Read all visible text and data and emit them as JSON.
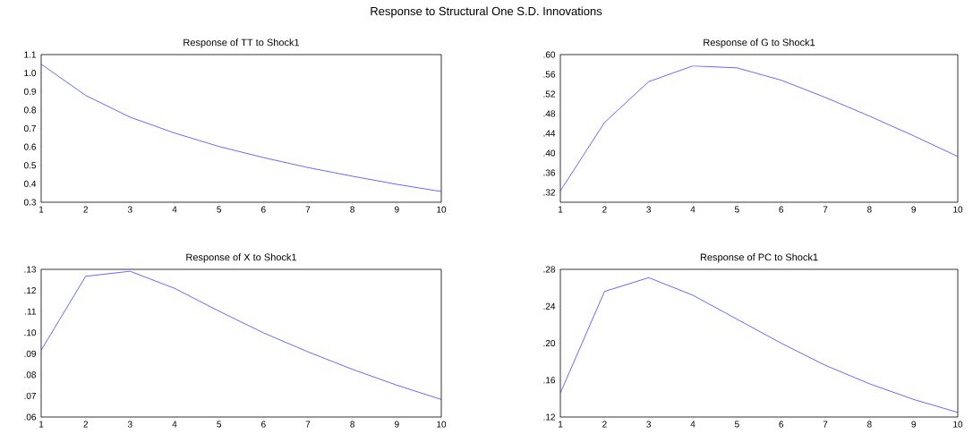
{
  "chart_data": [
    {
      "type": "line",
      "title": "Response of TT to Shock1",
      "annotations": [
        "Response to Structural One S.D. Innovations"
      ],
      "x": [
        1,
        2,
        3,
        4,
        5,
        6,
        7,
        8,
        9,
        10
      ],
      "xlim": [
        1,
        10
      ],
      "xticks": [
        1,
        2,
        3,
        4,
        5,
        6,
        7,
        8,
        9,
        10
      ],
      "ylim": [
        0.3,
        1.1
      ],
      "yticks": [
        {
          "value": 0.3,
          "label": "0.3"
        },
        {
          "value": 0.4,
          "label": "0.4"
        },
        {
          "value": 0.5,
          "label": "0.5"
        },
        {
          "value": 0.6,
          "label": "0.6"
        },
        {
          "value": 0.7,
          "label": "0.7"
        },
        {
          "value": 0.8,
          "label": "0.8"
        },
        {
          "value": 0.9,
          "label": "0.9"
        },
        {
          "value": 1.0,
          "label": "1.0"
        },
        {
          "value": 1.1,
          "label": "1.1"
        }
      ],
      "color": "#0000ff",
      "values": [
        1.048,
        0.879,
        0.761,
        0.675,
        0.602,
        0.542,
        0.488,
        0.441,
        0.397,
        0.358
      ]
    },
    {
      "type": "line",
      "title": "Response of G to Shock1",
      "x": [
        1,
        2,
        3,
        4,
        5,
        6,
        7,
        8,
        9,
        10
      ],
      "xlim": [
        1,
        10
      ],
      "xticks": [
        1,
        2,
        3,
        4,
        5,
        6,
        7,
        8,
        9,
        10
      ],
      "ylim": [
        0.3,
        0.6
      ],
      "yticks": [
        {
          "value": 0.32,
          "label": ".32"
        },
        {
          "value": 0.36,
          "label": ".36"
        },
        {
          "value": 0.4,
          "label": ".40"
        },
        {
          "value": 0.44,
          "label": ".44"
        },
        {
          "value": 0.48,
          "label": ".48"
        },
        {
          "value": 0.52,
          "label": ".52"
        },
        {
          "value": 0.56,
          "label": ".56"
        },
        {
          "value": 0.6,
          "label": ".60"
        }
      ],
      "color": "#0000ff",
      "values": [
        0.323,
        0.462,
        0.545,
        0.577,
        0.573,
        0.548,
        0.513,
        0.475,
        0.435,
        0.393
      ]
    },
    {
      "type": "line",
      "title": "Response of X to Shock1",
      "x": [
        1,
        2,
        3,
        4,
        5,
        6,
        7,
        8,
        9,
        10
      ],
      "xlim": [
        1,
        10
      ],
      "xticks": [
        1,
        2,
        3,
        4,
        5,
        6,
        7,
        8,
        9,
        10
      ],
      "ylim": [
        0.06,
        0.13
      ],
      "yticks": [
        {
          "value": 0.06,
          "label": ".06"
        },
        {
          "value": 0.07,
          "label": ".07"
        },
        {
          "value": 0.08,
          "label": ".08"
        },
        {
          "value": 0.09,
          "label": ".09"
        },
        {
          "value": 0.1,
          "label": ".10"
        },
        {
          "value": 0.11,
          "label": ".11"
        },
        {
          "value": 0.12,
          "label": ".12"
        },
        {
          "value": 0.13,
          "label": ".13"
        }
      ],
      "color": "#0000ff",
      "values": [
        0.0917,
        0.1267,
        0.1291,
        0.121,
        0.1102,
        0.0999,
        0.0909,
        0.0826,
        0.0751,
        0.0683
      ]
    },
    {
      "type": "line",
      "title": "Response of PC to Shock1",
      "x": [
        1,
        2,
        3,
        4,
        5,
        6,
        7,
        8,
        9,
        10
      ],
      "xlim": [
        1,
        10
      ],
      "xticks": [
        1,
        2,
        3,
        4,
        5,
        6,
        7,
        8,
        9,
        10
      ],
      "ylim": [
        0.12,
        0.28
      ],
      "yticks": [
        {
          "value": 0.12,
          "label": ".12"
        },
        {
          "value": 0.16,
          "label": ".16"
        },
        {
          "value": 0.2,
          "label": ".20"
        },
        {
          "value": 0.24,
          "label": ".24"
        },
        {
          "value": 0.28,
          "label": ".28"
        }
      ],
      "color": "#0000ff",
      "values": [
        0.146,
        0.256,
        0.271,
        0.252,
        0.226,
        0.2,
        0.176,
        0.156,
        0.139,
        0.125
      ]
    }
  ]
}
